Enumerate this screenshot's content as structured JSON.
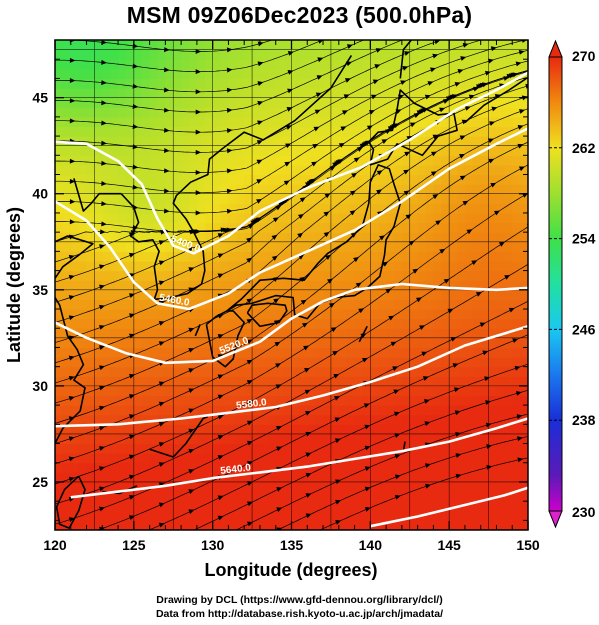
{
  "title": "MSM 09Z06Dec2023 (500.0hPa)",
  "footer": {
    "line1": "Drawing by DCL (https://www.gfd-dennou.org/library/dcl/)",
    "line2": "Data from http://database.rish.kyoto-u.ac.jp/arch/jmadata/"
  },
  "map": {
    "xlabel": "Longitude (degrees)",
    "ylabel": "Latitude  (degrees)",
    "lon_range": [
      120,
      150
    ],
    "lat_range": [
      22.5,
      48
    ],
    "lon_ticks": [
      "120",
      "125",
      "130",
      "135",
      "140",
      "145",
      "150"
    ],
    "lat_ticks": [
      "25",
      "30",
      "35",
      "40",
      "45"
    ],
    "shaded_variable": "temperature (K)",
    "contours": [
      {
        "label": "5400.0",
        "points": [
          [
            120,
            42.7
          ],
          [
            122,
            42.6
          ],
          [
            124,
            41.7
          ],
          [
            125.5,
            40.5
          ],
          [
            126.5,
            38.7
          ],
          [
            127.5,
            37.3
          ],
          [
            128.8,
            36.9
          ],
          [
            131,
            37.8
          ],
          [
            133,
            39.1
          ],
          [
            136,
            40.3
          ],
          [
            139.5,
            41.4
          ],
          [
            142.5,
            42.8
          ],
          [
            145.5,
            44.4
          ],
          [
            148,
            45.4
          ],
          [
            150,
            46.3
          ]
        ]
      },
      {
        "label": "5460.0",
        "points": [
          [
            120,
            39.6
          ],
          [
            122,
            38.6
          ],
          [
            123.5,
            37.2
          ],
          [
            125,
            35.4
          ],
          [
            126.5,
            34.3
          ],
          [
            128.5,
            34
          ],
          [
            131,
            34.8
          ],
          [
            133,
            35.9
          ],
          [
            136,
            37
          ],
          [
            139,
            38.1
          ],
          [
            142,
            39.6
          ],
          [
            145,
            41.3
          ],
          [
            148,
            42.6
          ],
          [
            150,
            43.4
          ]
        ]
      },
      {
        "label": "5520.0",
        "points": [
          [
            120,
            33.3
          ],
          [
            122,
            32.5
          ],
          [
            124.5,
            31.7
          ],
          [
            127,
            31.2
          ],
          [
            130,
            31.3
          ],
          [
            133,
            32.3
          ],
          [
            135,
            33.5
          ],
          [
            137,
            34.4
          ],
          [
            139,
            35
          ],
          [
            142,
            35.3
          ],
          [
            145,
            35.1
          ],
          [
            148,
            35
          ],
          [
            150,
            35.1
          ]
        ]
      },
      {
        "label": "5580.0",
        "points": [
          [
            120,
            27.9
          ],
          [
            124,
            28
          ],
          [
            128,
            28.3
          ],
          [
            131,
            28.6
          ],
          [
            134,
            28.9
          ],
          [
            137,
            29.5
          ],
          [
            140,
            30.2
          ],
          [
            143,
            31
          ],
          [
            146,
            32.1
          ],
          [
            150,
            33.1
          ]
        ]
      },
      {
        "label": "5640.0",
        "points": [
          [
            121,
            24.2
          ],
          [
            124,
            24.5
          ],
          [
            127,
            24.8
          ],
          [
            130,
            25.2
          ],
          [
            133,
            25.5
          ],
          [
            136,
            25.8
          ],
          [
            139,
            26.2
          ],
          [
            142,
            26.6
          ],
          [
            145,
            27.1
          ],
          [
            148,
            27.8
          ],
          [
            150,
            28.3
          ]
        ]
      },
      {
        "label": "",
        "points": [
          [
            140,
            22.7
          ],
          [
            143,
            23.2
          ],
          [
            146,
            23.8
          ],
          [
            148.5,
            24.3
          ],
          [
            150,
            24.7
          ]
        ]
      }
    ],
    "colorbar": {
      "min_label": "230",
      "max_label": "270",
      "ticks": [
        "238",
        "246",
        "254",
        "262"
      ]
    },
    "colors": {
      "contour": "#ffffff",
      "coastline": "#000000",
      "vectors": "#000000"
    }
  }
}
